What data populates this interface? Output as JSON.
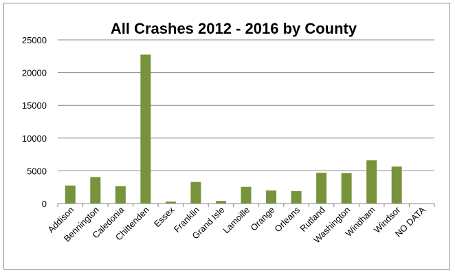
{
  "chart_data": {
    "type": "bar",
    "title": "All Crashes 2012 - 2016 by County",
    "xlabel": "",
    "ylabel": "",
    "categories": [
      "Addison",
      "Bennington",
      "Caledonia",
      "Chittenden",
      "Essex",
      "Franklin",
      "Grand Isle",
      "Lamoille",
      "Orange",
      "Orleans",
      "Rutland",
      "Washington",
      "Windham",
      "Windsor",
      "NO DATA"
    ],
    "values": [
      2750,
      4050,
      2650,
      22750,
      300,
      3300,
      400,
      2550,
      2000,
      1900,
      4700,
      4650,
      6600,
      5650,
      0
    ],
    "ylim": [
      0,
      25000
    ],
    "yticks": [
      0,
      5000,
      10000,
      15000,
      20000,
      25000
    ],
    "grid": true,
    "legend": "none",
    "colors": {
      "bar": "#77933c",
      "grid": "#868686",
      "axis": "#868686"
    }
  }
}
